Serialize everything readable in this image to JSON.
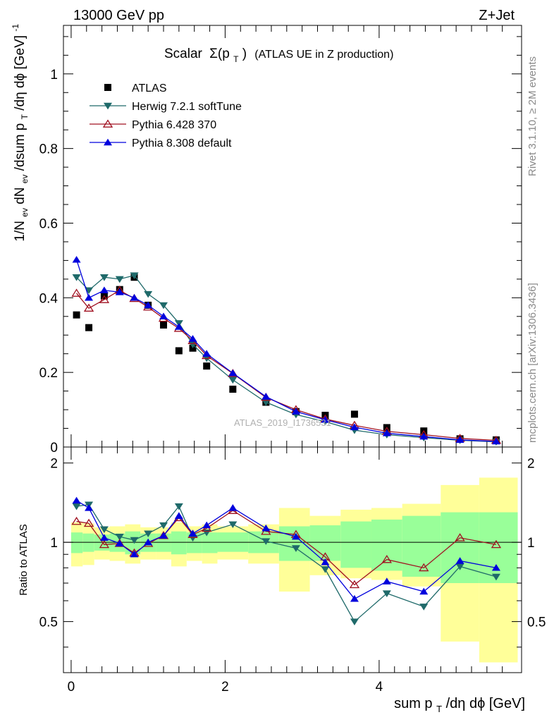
{
  "header": {
    "left": "13000 GeV pp",
    "right": "Z+Jet"
  },
  "main_title_prefix": "Scalar",
  "main_title_symbol": "Σ(p",
  "main_title_sub": "T",
  "main_title_close": ")",
  "main_title_suffix": "(ATLAS UE in Z production)",
  "side_text": {
    "right_top": "Rivet 3.1.10, ≥ 2M events",
    "right_bottom": "mcplots.cern.ch [arXiv:1306.3436]"
  },
  "watermark": "ATLAS_2019_I1736531",
  "axes": {
    "ylabel_top": "1/N_ev dN_ev/dsum p_T/dη dϕ [GeV]^-1",
    "ylabel_top_parts": [
      "1/N",
      "ev",
      " dN",
      "ev",
      "/dsum p",
      "T",
      "/dη dϕ  [GeV]",
      "-1"
    ],
    "ylabel_bottom": "Ratio to ATLAS",
    "xlabel_parts": [
      "sum p",
      "T",
      "/dη dϕ [GeV]"
    ]
  },
  "colors": {
    "atlas": "#000000",
    "herwig": "#1f6a6a",
    "pythia6": "#a01020",
    "pythia8": "#0000dd",
    "band_inner": "#99ff99",
    "band_outer": "#ffff99"
  },
  "chart_data": [
    {
      "type": "scatter",
      "panel": "main",
      "x": [
        0.07,
        0.23,
        0.43,
        0.63,
        0.82,
        1.0,
        1.2,
        1.4,
        1.58,
        1.76,
        2.1,
        2.53,
        2.92,
        3.3,
        3.68,
        4.1,
        4.58,
        5.05,
        5.52
      ],
      "xlim": [
        -0.1,
        5.85
      ],
      "ylim": [
        0,
        1.13
      ],
      "yticks": [
        0,
        0.2,
        0.4,
        0.6,
        0.8,
        1
      ],
      "ytick_labels": [
        "0",
        "0.2",
        "0.4",
        "0.6",
        "0.8",
        "1"
      ],
      "series": [
        {
          "name": "ATLAS",
          "marker": "square",
          "values": [
            0.354,
            0.32,
            0.405,
            0.422,
            0.455,
            0.38,
            0.327,
            0.258,
            0.265,
            0.217,
            0.155,
            0.12,
            0.095,
            0.085,
            0.088,
            0.052,
            0.043,
            0.022,
            0.019
          ]
        },
        {
          "name": "Herwig 7.2.1 softTune",
          "marker": "triangle-down",
          "values": [
            0.455,
            0.42,
            0.455,
            0.45,
            0.46,
            0.41,
            0.38,
            0.332,
            0.275,
            0.238,
            0.18,
            0.12,
            0.087,
            0.068,
            0.045,
            0.033,
            0.025,
            0.018,
            0.014
          ]
        },
        {
          "name": "Pythia 6.428 370",
          "marker": "triangle-open",
          "values": [
            0.412,
            0.372,
            0.395,
            0.42,
            0.398,
            0.375,
            0.345,
            0.318,
            0.285,
            0.245,
            0.197,
            0.133,
            0.1,
            0.075,
            0.058,
            0.042,
            0.033,
            0.023,
            0.018
          ]
        },
        {
          "name": "Pythia 8.308 default",
          "marker": "triangle-up",
          "values": [
            0.502,
            0.4,
            0.42,
            0.415,
            0.4,
            0.38,
            0.35,
            0.322,
            0.29,
            0.25,
            0.198,
            0.135,
            0.095,
            0.073,
            0.053,
            0.037,
            0.028,
            0.019,
            0.015
          ]
        }
      ]
    },
    {
      "type": "line",
      "panel": "ratio",
      "x": [
        0.07,
        0.23,
        0.43,
        0.63,
        0.82,
        1.0,
        1.2,
        1.4,
        1.58,
        1.76,
        2.1,
        2.53,
        2.92,
        3.3,
        3.68,
        4.1,
        4.58,
        5.05,
        5.52
      ],
      "xlim": [
        -0.1,
        5.85
      ],
      "ylim": [
        0.32,
        2.3
      ],
      "yticks": [
        0.5,
        1,
        2
      ],
      "ytick_labels": [
        "0.5",
        "1",
        "2"
      ],
      "xticks": [
        0,
        2,
        4
      ],
      "xtick_labels": [
        "0",
        "2",
        "4"
      ],
      "bin_edges": [
        0,
        0.15,
        0.3,
        0.5,
        0.7,
        0.9,
        1.1,
        1.3,
        1.5,
        1.7,
        1.9,
        2.3,
        2.7,
        3.1,
        3.5,
        3.9,
        4.3,
        4.8,
        5.3,
        5.8
      ],
      "bands": {
        "inner_low": [
          0.91,
          0.92,
          0.93,
          0.92,
          0.9,
          0.92,
          0.92,
          0.9,
          0.91,
          0.91,
          0.92,
          0.91,
          0.85,
          0.85,
          0.8,
          0.78,
          0.74,
          0.7,
          0.7
        ],
        "inner_high": [
          1.09,
          1.08,
          1.07,
          1.08,
          1.1,
          1.08,
          1.08,
          1.1,
          1.09,
          1.09,
          1.09,
          1.1,
          1.15,
          1.16,
          1.2,
          1.22,
          1.26,
          1.3,
          1.3
        ],
        "outer_low": [
          0.81,
          0.82,
          0.86,
          0.85,
          0.83,
          0.86,
          0.86,
          0.81,
          0.85,
          0.83,
          0.86,
          0.83,
          0.65,
          0.75,
          0.73,
          0.72,
          0.68,
          0.42,
          0.35
        ],
        "outer_high": [
          1.19,
          1.18,
          1.14,
          1.15,
          1.17,
          1.14,
          1.14,
          1.19,
          1.15,
          1.17,
          1.15,
          1.17,
          1.35,
          1.26,
          1.33,
          1.35,
          1.4,
          1.65,
          1.76
        ]
      },
      "series": [
        {
          "name": "Herwig 7.2.1 softTune",
          "marker": "triangle-down",
          "values": [
            1.37,
            1.39,
            1.12,
            1.05,
            1.02,
            1.08,
            1.16,
            1.37,
            1.04,
            1.09,
            1.17,
            1.01,
            0.95,
            0.79,
            0.5,
            0.64,
            0.57,
            0.81,
            0.74
          ]
        },
        {
          "name": "Pythia 6.428 370",
          "marker": "triangle-open",
          "values": [
            1.2,
            1.18,
            0.98,
            0.99,
            0.91,
            0.99,
            1.06,
            1.24,
            1.07,
            1.13,
            1.32,
            1.1,
            1.07,
            0.88,
            0.69,
            0.86,
            0.8,
            1.04,
            0.98
          ]
        },
        {
          "name": "Pythia 8.308 default",
          "marker": "triangle-up",
          "values": [
            1.44,
            1.35,
            1.04,
            0.99,
            0.9,
            1.0,
            1.06,
            1.26,
            1.08,
            1.16,
            1.35,
            1.13,
            1.05,
            0.84,
            0.61,
            0.71,
            0.65,
            0.85,
            0.8
          ]
        }
      ]
    }
  ]
}
